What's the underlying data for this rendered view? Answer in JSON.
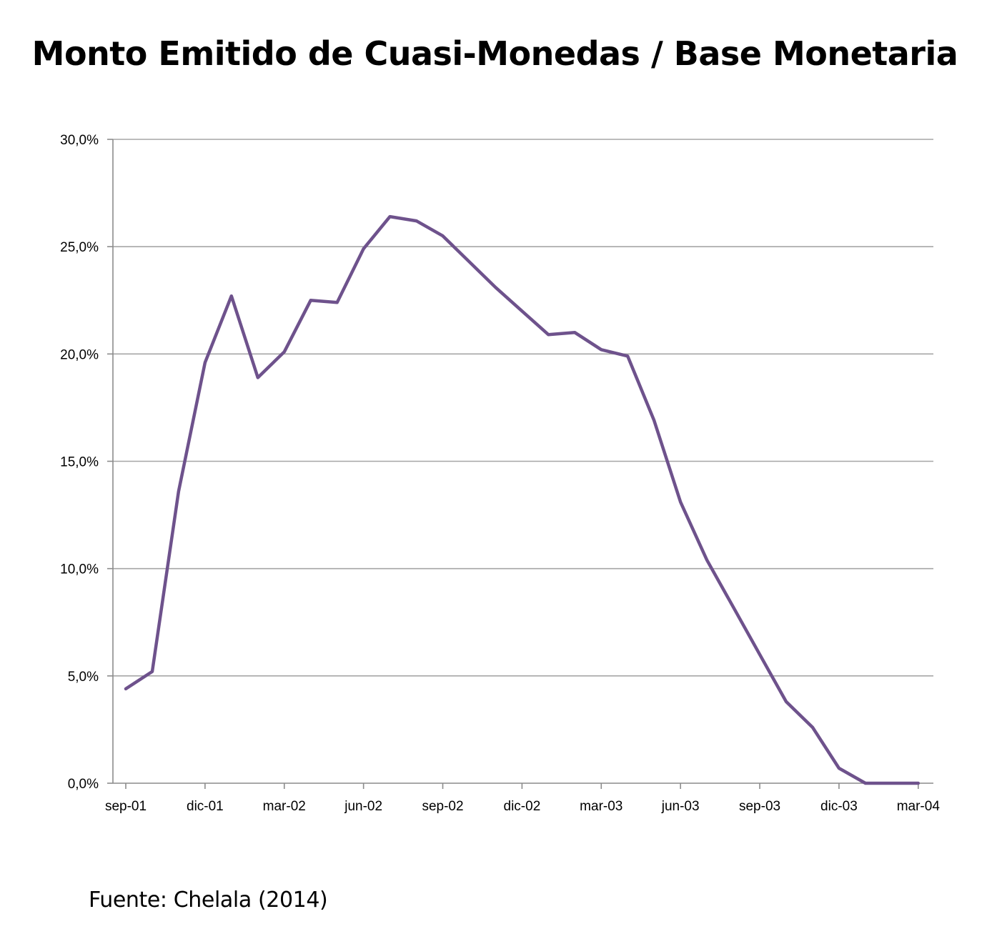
{
  "chart_data": {
    "type": "line",
    "title": "Monto Emitido de Cuasi-Monedas / Base Monetaria",
    "xlabel": "",
    "ylabel": "",
    "x_tick_labels": [
      "sep-01",
      "dic-01",
      "mar-02",
      "jun-02",
      "sep-02",
      "dic-02",
      "mar-03",
      "jun-03",
      "sep-03",
      "dic-03",
      "mar-04"
    ],
    "y_tick_labels": [
      "0,0%",
      "5,0%",
      "10,0%",
      "15,0%",
      "20,0%",
      "25,0%",
      "30,0%"
    ],
    "ylim": [
      0,
      30
    ],
    "grid": true,
    "legend": "none",
    "line_color": "#6e528c",
    "series": [
      {
        "name": "",
        "x": [
          "sep-01",
          "oct-01",
          "nov-01",
          "dic-01",
          "ene-02",
          "feb-02",
          "mar-02",
          "abr-02",
          "may-02",
          "jun-02",
          "jul-02",
          "ago-02",
          "sep-02",
          "oct-02",
          "nov-02",
          "dic-02",
          "ene-03",
          "feb-03",
          "mar-03",
          "abr-03",
          "may-03",
          "jun-03",
          "jul-03",
          "ago-03",
          "sep-03",
          "oct-03",
          "nov-03",
          "dic-03",
          "ene-04",
          "feb-04",
          "mar-04"
        ],
        "values": [
          4.4,
          5.2,
          13.6,
          19.6,
          22.7,
          18.9,
          20.1,
          22.5,
          22.4,
          24.9,
          26.4,
          26.2,
          25.5,
          24.3,
          23.1,
          22.0,
          20.9,
          21.0,
          20.2,
          19.9,
          16.9,
          13.1,
          10.4,
          8.2,
          6.0,
          3.8,
          2.6,
          0.7,
          0.0,
          0.0,
          0.0
        ]
      }
    ]
  },
  "source_note": "Fuente: Chelala (2014)"
}
